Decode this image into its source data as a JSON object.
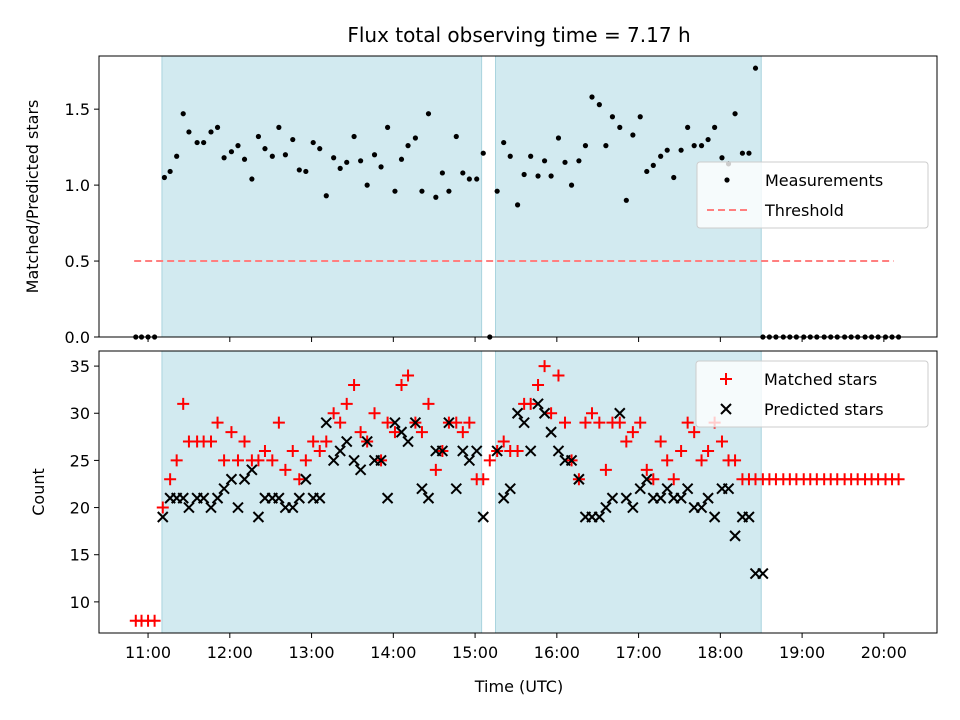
{
  "figure": {
    "title": "Flux total observing time = 7.17 h",
    "xlabel": "Time (UTC)",
    "xticks": [
      11,
      12,
      13,
      14,
      15,
      16,
      17,
      18,
      19,
      20
    ],
    "xtick_labels": [
      "11:00",
      "12:00",
      "13:00",
      "14:00",
      "15:00",
      "16:00",
      "17:00",
      "18:00",
      "19:00",
      "20:00"
    ],
    "xlim": [
      10.4,
      20.65
    ],
    "shaded_regions": [
      [
        11.17,
        15.08
      ],
      [
        15.25,
        18.5
      ]
    ],
    "colors": {
      "shade": "#d2eaf0",
      "shade_edge": "#a9d3de",
      "matched": "#ff0000",
      "predicted": "#000000",
      "threshold": "#ff7f7f",
      "measurement": "#000000"
    }
  },
  "chart_data": [
    {
      "type": "scatter",
      "panel": "top",
      "ylabel": "Matched/Predicted stars",
      "ylim": [
        0,
        1.85
      ],
      "yticks": [
        0.0,
        0.5,
        1.0,
        1.5
      ],
      "ytick_labels": [
        "0.0",
        "0.5",
        "1.0",
        "1.5"
      ],
      "legend": {
        "position": "center-right",
        "entries": [
          "Measurements",
          "Threshold"
        ]
      },
      "threshold": {
        "name": "Threshold",
        "value": 0.5,
        "x_range": [
          10.83,
          20.12
        ]
      },
      "series": [
        {
          "name": "Measurements",
          "x": [
            10.85,
            10.92,
            11.0,
            11.08,
            11.2,
            11.27,
            11.35,
            11.43,
            11.5,
            11.6,
            11.68,
            11.77,
            11.85,
            11.93,
            12.02,
            12.1,
            12.18,
            12.27,
            12.35,
            12.43,
            12.52,
            12.6,
            12.68,
            12.77,
            12.85,
            12.93,
            13.02,
            13.1,
            13.18,
            13.27,
            13.35,
            13.43,
            13.52,
            13.6,
            13.68,
            13.77,
            13.85,
            13.93,
            14.02,
            14.1,
            14.18,
            14.27,
            14.35,
            14.43,
            14.52,
            14.6,
            14.68,
            14.77,
            14.85,
            14.93,
            15.02,
            15.1,
            15.18,
            15.27,
            15.35,
            15.43,
            15.52,
            15.6,
            15.68,
            15.77,
            15.85,
            15.93,
            16.02,
            16.1,
            16.18,
            16.27,
            16.35,
            16.43,
            16.52,
            16.6,
            16.68,
            16.77,
            16.85,
            16.93,
            17.02,
            17.1,
            17.18,
            17.27,
            17.35,
            17.43,
            17.52,
            17.6,
            17.68,
            17.77,
            17.85,
            17.93,
            18.02,
            18.1,
            18.18,
            18.27,
            18.35,
            18.43,
            18.52,
            18.6,
            18.68,
            18.77,
            18.85,
            18.93,
            19.02,
            19.1,
            19.18,
            19.27,
            19.35,
            19.43,
            19.52,
            19.6,
            19.68,
            19.77,
            19.85,
            19.93,
            20.02,
            20.1,
            20.18
          ],
          "y": [
            0.0,
            0.0,
            0.0,
            0.0,
            1.05,
            1.09,
            1.19,
            1.47,
            1.35,
            1.28,
            1.28,
            1.35,
            1.38,
            1.18,
            1.22,
            1.26,
            1.17,
            1.04,
            1.32,
            1.24,
            1.19,
            1.38,
            1.2,
            1.3,
            1.1,
            1.09,
            1.28,
            1.24,
            0.93,
            1.18,
            1.11,
            1.15,
            1.32,
            1.16,
            1.0,
            1.2,
            1.12,
            1.38,
            0.96,
            1.17,
            1.26,
            1.31,
            0.96,
            1.47,
            0.92,
            1.08,
            0.96,
            1.32,
            1.08,
            1.04,
            1.04,
            1.21,
            0.0,
            0.96,
            1.28,
            1.19,
            0.87,
            1.07,
            1.19,
            1.06,
            1.16,
            1.06,
            1.31,
            1.15,
            1.0,
            1.16,
            1.26,
            1.58,
            1.53,
            1.26,
            1.45,
            1.38,
            0.9,
            1.33,
            1.45,
            1.09,
            1.13,
            1.19,
            1.23,
            1.05,
            1.23,
            1.38,
            1.26,
            1.26,
            1.3,
            1.38,
            1.18,
            1.14,
            1.47,
            1.21,
            1.21,
            1.77,
            0.0,
            0.0,
            0.0,
            0.0,
            0.0,
            0.0,
            0.0,
            0.0,
            0.0,
            0.0,
            0.0,
            0.0,
            0.0,
            0.0,
            0.0,
            0.0,
            0.0,
            0.0,
            0.0,
            0.0,
            0.0
          ]
        }
      ]
    },
    {
      "type": "scatter",
      "panel": "bottom",
      "ylabel": "Count",
      "ylim": [
        6.7,
        36.6
      ],
      "yticks": [
        10,
        15,
        20,
        25,
        30,
        35
      ],
      "ytick_labels": [
        "10",
        "15",
        "20",
        "25",
        "30",
        "35"
      ],
      "legend": {
        "position": "top-right",
        "entries": [
          "Matched stars",
          "Predicted stars"
        ]
      },
      "series": [
        {
          "name": "Matched stars",
          "marker": "+",
          "x": [
            10.85,
            10.92,
            11.0,
            11.08,
            11.18,
            11.27,
            11.35,
            11.43,
            11.5,
            11.6,
            11.68,
            11.77,
            11.85,
            11.93,
            12.02,
            12.1,
            12.18,
            12.27,
            12.35,
            12.43,
            12.52,
            12.6,
            12.68,
            12.77,
            12.85,
            12.93,
            13.02,
            13.1,
            13.18,
            13.27,
            13.35,
            13.43,
            13.52,
            13.6,
            13.68,
            13.77,
            13.85,
            13.93,
            14.02,
            14.1,
            14.18,
            14.27,
            14.35,
            14.43,
            14.52,
            14.6,
            14.68,
            14.77,
            14.85,
            14.93,
            15.02,
            15.1,
            15.18,
            15.27,
            15.35,
            15.43,
            15.52,
            15.6,
            15.68,
            15.77,
            15.85,
            15.93,
            16.02,
            16.1,
            16.18,
            16.27,
            16.35,
            16.43,
            16.52,
            16.6,
            16.68,
            16.77,
            16.85,
            16.93,
            17.02,
            17.1,
            17.18,
            17.27,
            17.35,
            17.43,
            17.52,
            17.6,
            17.68,
            17.77,
            17.85,
            17.93,
            18.02,
            18.1,
            18.18,
            18.27,
            18.35,
            18.43,
            18.52,
            18.6,
            18.68,
            18.77,
            18.85,
            18.93,
            19.02,
            19.1,
            19.18,
            19.27,
            19.35,
            19.43,
            19.52,
            19.6,
            19.68,
            19.77,
            19.85,
            19.93,
            20.02,
            20.1,
            20.18
          ],
          "y": [
            8,
            8,
            8,
            8,
            20,
            23,
            25,
            31,
            27,
            27,
            27,
            27,
            29,
            25,
            28,
            25,
            27,
            25,
            25,
            26,
            25,
            29,
            24,
            26,
            23,
            25,
            27,
            26,
            27,
            30,
            29,
            31,
            33,
            28,
            27,
            30,
            25,
            29,
            28,
            33,
            34,
            29,
            28,
            31,
            24,
            26,
            29,
            29,
            28,
            29,
            23,
            23,
            25,
            26,
            27,
            26,
            26,
            31,
            31,
            33,
            35,
            30,
            34,
            29,
            25,
            23,
            29,
            30,
            29,
            24,
            29,
            29,
            27,
            28,
            29,
            24,
            23,
            27,
            25,
            23,
            26,
            29,
            28,
            25,
            26,
            29,
            27,
            25,
            25,
            23,
            23,
            23,
            23,
            23,
            23,
            23,
            23,
            23,
            23,
            23,
            23,
            23,
            23,
            23,
            23,
            23,
            23,
            23,
            23,
            23,
            23,
            23,
            23
          ]
        },
        {
          "name": "Predicted stars",
          "marker": "x",
          "x": [
            11.18,
            11.27,
            11.35,
            11.43,
            11.5,
            11.6,
            11.68,
            11.77,
            11.85,
            11.93,
            12.02,
            12.1,
            12.18,
            12.27,
            12.35,
            12.43,
            12.52,
            12.6,
            12.68,
            12.77,
            12.85,
            12.93,
            13.02,
            13.1,
            13.18,
            13.27,
            13.35,
            13.43,
            13.52,
            13.6,
            13.68,
            13.77,
            13.85,
            13.93,
            14.02,
            14.1,
            14.18,
            14.27,
            14.35,
            14.43,
            14.52,
            14.6,
            14.68,
            14.77,
            14.85,
            14.93,
            15.02,
            15.1,
            15.27,
            15.35,
            15.43,
            15.52,
            15.6,
            15.68,
            15.77,
            15.85,
            15.93,
            16.02,
            16.1,
            16.18,
            16.27,
            16.35,
            16.43,
            16.52,
            16.6,
            16.68,
            16.77,
            16.85,
            16.93,
            17.02,
            17.1,
            17.18,
            17.27,
            17.35,
            17.43,
            17.52,
            17.6,
            17.68,
            17.77,
            17.85,
            17.93,
            18.02,
            18.1,
            18.18,
            18.27,
            18.35,
            18.43,
            18.52
          ],
          "y": [
            19,
            21,
            21,
            21,
            20,
            21,
            21,
            20,
            21,
            22,
            23,
            20,
            23,
            24,
            19,
            21,
            21,
            21,
            20,
            20,
            21,
            23,
            21,
            21,
            29,
            25,
            26,
            27,
            25,
            24,
            27,
            25,
            25,
            21,
            29,
            28,
            27,
            29,
            22,
            21,
            26,
            26,
            29,
            22,
            26,
            25,
            26,
            19,
            26,
            21,
            22,
            30,
            29,
            26,
            31,
            30,
            28,
            26,
            25,
            25,
            23,
            19,
            19,
            19,
            20,
            21,
            30,
            21,
            20,
            22,
            23,
            21,
            21,
            22,
            21,
            21,
            22,
            20,
            20,
            21,
            19,
            22,
            22,
            17,
            19,
            19,
            13,
            13
          ]
        }
      ]
    }
  ]
}
